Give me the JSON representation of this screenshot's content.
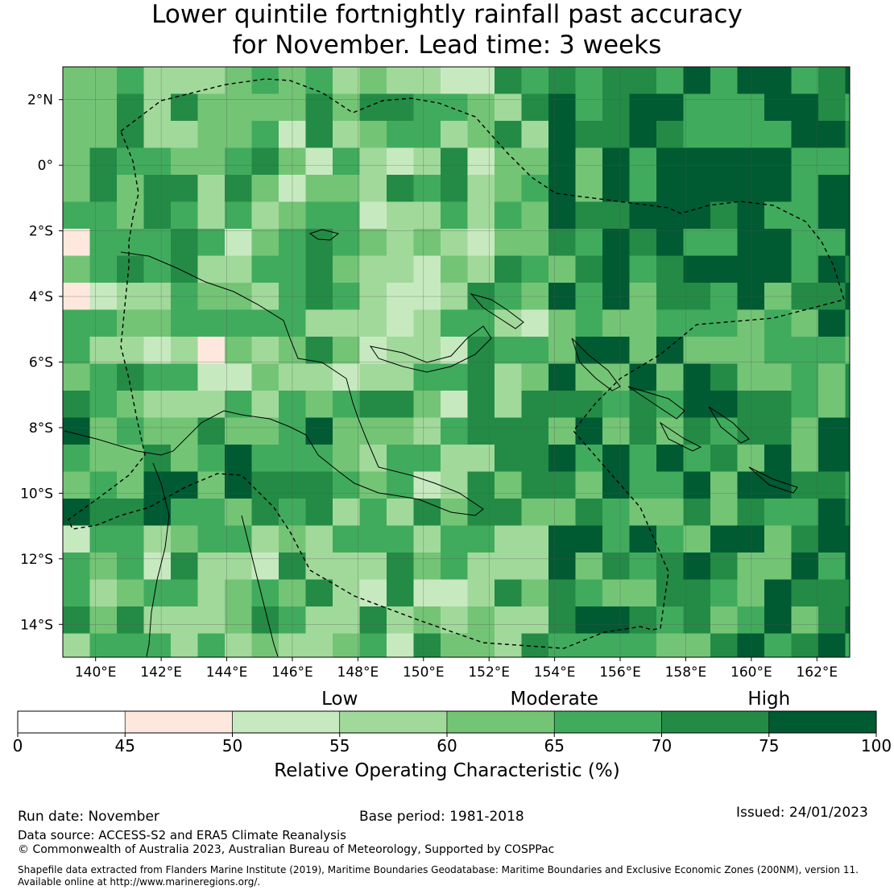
{
  "title": {
    "line1": "Lower quintile fortnightly rainfall past accuracy",
    "line2": "for November. Lead time: 3 weeks"
  },
  "map": {
    "lat_labels": [
      "2°N",
      "0°",
      "2°S",
      "4°S",
      "6°S",
      "8°S",
      "10°S",
      "12°S",
      "14°S"
    ],
    "lon_labels": [
      "140°E",
      "142°E",
      "144°E",
      "146°E",
      "148°E",
      "150°E",
      "152°E",
      "154°E",
      "156°E",
      "158°E",
      "160°E",
      "162°E"
    ],
    "lat_values": [
      2,
      0,
      -2,
      -4,
      -6,
      -8,
      -10,
      -12,
      -14
    ],
    "lon_values": [
      140,
      142,
      144,
      146,
      148,
      150,
      152,
      154,
      156,
      158,
      160,
      162
    ],
    "extent": {
      "lon_min": 139,
      "lon_max": 163,
      "lat_min": -15,
      "lat_max": 3
    },
    "cell_size_deg": 0.8333
  },
  "colorbar": {
    "categories": [
      "Low",
      "Moderate",
      "High"
    ],
    "category_at": [
      55,
      65,
      75
    ],
    "ticks": [
      "0",
      "45",
      "50",
      "55",
      "60",
      "65",
      "70",
      "75",
      "100"
    ],
    "bounds": [
      0,
      45,
      50,
      55,
      60,
      65,
      70,
      75,
      100
    ],
    "colors": [
      "#ffffff",
      "#fee8de",
      "#c7e9c0",
      "#a1d99b",
      "#74c476",
      "#41ab5d",
      "#238b45",
      "#005a32"
    ],
    "label": "Relative Operating Characteristic (%)"
  },
  "footer": {
    "run_date": "Run date: November",
    "base_period": "Base period: 1981-2018",
    "issued": "Issued: 24/01/2023",
    "data_source": "Data source: ACCESS-S2 and ERA5 Climate Reanalysis",
    "copyright": "© Commonwealth of Australia 2023, Australian Bureau of Meteorology, Supported by COSPPac",
    "shapefile_line1": "Shapefile data extracted from Flanders Marine Institute (2019), Maritime Boundaries Geodatabase: Maritime Boundaries and Exclusive Economic Zones (200NM), version 11.",
    "shapefile_line2": "Available online at http://www.marineregions.org/."
  }
}
